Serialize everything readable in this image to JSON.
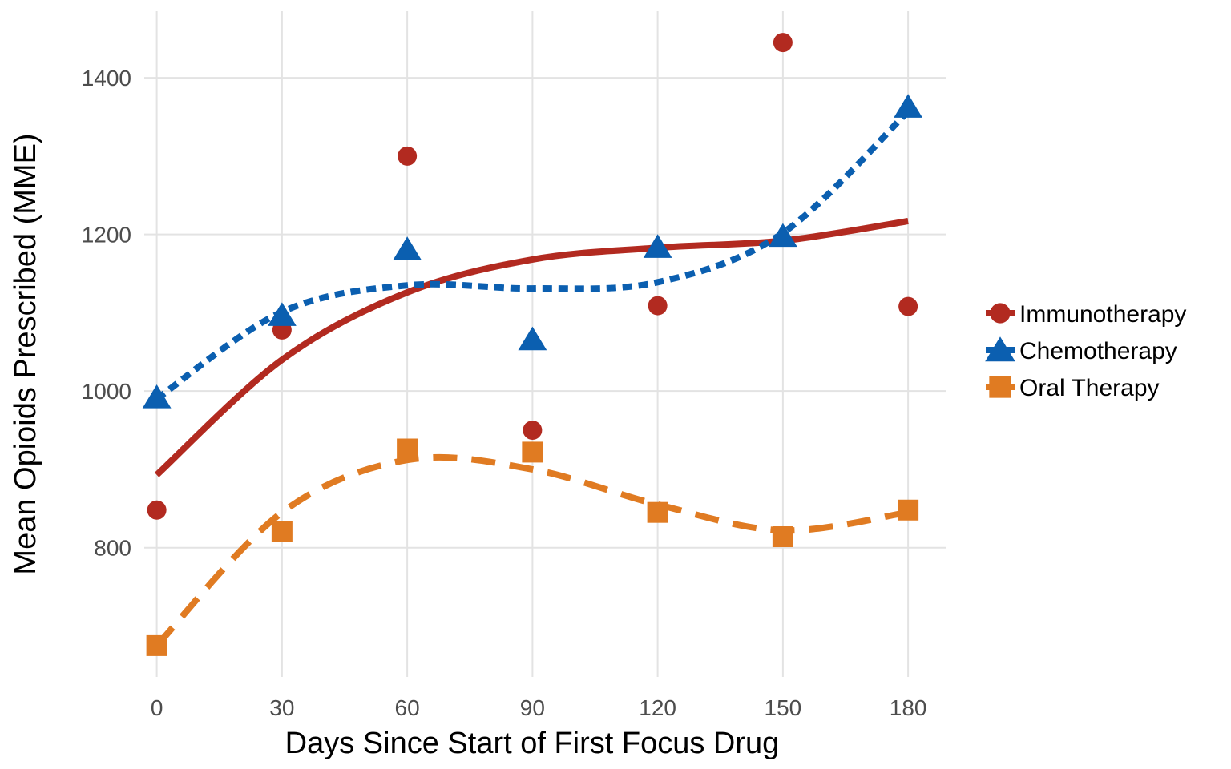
{
  "chart_data": {
    "type": "scatter",
    "xlabel": "Days Since Start of First Focus Drug",
    "ylabel": "Mean Opioids Prescribed (MME)",
    "x_ticks": [
      0,
      30,
      60,
      90,
      120,
      150,
      180
    ],
    "y_ticks": [
      800,
      1000,
      1200,
      1400
    ],
    "xlim": [
      -3,
      189
    ],
    "ylim": [
      635,
      1485
    ],
    "grid": true,
    "legend_position": "right",
    "series": [
      {
        "name": "Immunotherapy",
        "color": "#b22a20",
        "marker": "circle",
        "line_style": "solid",
        "x": [
          0,
          30,
          60,
          90,
          120,
          150,
          180
        ],
        "y": [
          848,
          1078,
          1300,
          950,
          1109,
          1445,
          1108
        ],
        "fit_y": [
          893,
          1040,
          1126,
          1168,
          1183,
          1192,
          1217
        ]
      },
      {
        "name": "Chemotherapy",
        "color": "#0b5fb0",
        "marker": "triangle",
        "line_style": "dotted",
        "x": [
          0,
          30,
          60,
          90,
          120,
          150,
          180
        ],
        "y": [
          992,
          1097,
          1181,
          1066,
          1184,
          1198,
          1363
        ],
        "fit_y": [
          990,
          1101,
          1135,
          1131,
          1139,
          1202,
          1357
        ]
      },
      {
        "name": "Oral Therapy",
        "color": "#e07b22",
        "marker": "square",
        "line_style": "dashed",
        "x": [
          0,
          30,
          60,
          90,
          120,
          150,
          180
        ],
        "y": [
          675,
          821,
          926,
          922,
          845,
          814,
          848
        ],
        "fit_y": [
          675,
          845,
          912,
          900,
          855,
          822,
          845
        ]
      }
    ]
  }
}
